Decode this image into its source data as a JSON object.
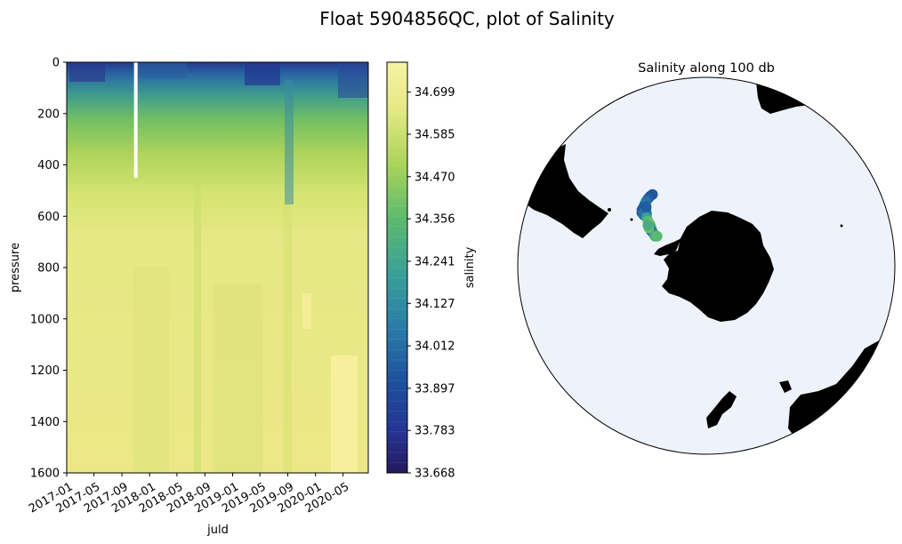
{
  "figure": {
    "title": "Float 5904856QC, plot of Salinity"
  },
  "chart_data": [
    {
      "type": "heatmap",
      "xlabel": "juld",
      "ylabel": "pressure",
      "x_ticks": [
        "2017-01",
        "2017-05",
        "2017-09",
        "2018-01",
        "2018-05",
        "2018-09",
        "2019-01",
        "2019-05",
        "2019-09",
        "2020-01",
        "2020-05"
      ],
      "xlim": [
        "2017-01-01",
        "2020-08-20"
      ],
      "ylim": [
        1600,
        0
      ],
      "y_ticks": [
        0,
        200,
        400,
        600,
        800,
        1000,
        1200,
        1400,
        1600
      ],
      "y_inverted": true,
      "colorbar": {
        "label": "salinity",
        "range": [
          33.668,
          34.78
        ],
        "ticks": [
          33.668,
          33.783,
          33.897,
          34.012,
          34.127,
          34.241,
          34.356,
          34.47,
          34.585,
          34.699
        ],
        "colormap": "YlGnBu_r"
      },
      "gap": {
        "date": "2017-11-01",
        "pressure_range": [
          0,
          450
        ]
      }
    },
    {
      "type": "scatter",
      "title": "Salinity along 100 db",
      "projection": "south-polar-stereographic",
      "ocean_color": "#eef3fb",
      "land_color": "#000000",
      "points": [
        {
          "lon": -37,
          "lat": -48,
          "s": 33.95
        },
        {
          "lon": -39,
          "lat": -48,
          "s": 33.93
        },
        {
          "lon": -41,
          "lat": -48.2,
          "s": 33.96
        },
        {
          "lon": -43,
          "lat": -48.5,
          "s": 34.02
        },
        {
          "lon": -45,
          "lat": -49,
          "s": 34.05
        },
        {
          "lon": -47,
          "lat": -49.5,
          "s": 33.98
        },
        {
          "lon": -49,
          "lat": -49.8,
          "s": 33.94
        },
        {
          "lon": -50.5,
          "lat": -50.5,
          "s": 33.97
        },
        {
          "lon": -50,
          "lat": -51.5,
          "s": 34.1
        },
        {
          "lon": -51,
          "lat": -52,
          "s": 34.0
        },
        {
          "lon": -49,
          "lat": -52.5,
          "s": 34.08
        },
        {
          "lon": -47,
          "lat": -51,
          "s": 34.02
        },
        {
          "lon": -45.5,
          "lat": -50.2,
          "s": 33.96
        },
        {
          "lon": -51,
          "lat": -53.5,
          "s": 34.2
        },
        {
          "lon": -52.5,
          "lat": -55,
          "s": 34.35
        },
        {
          "lon": -53.5,
          "lat": -56.5,
          "s": 34.4
        },
        {
          "lon": -55,
          "lat": -57.5,
          "s": 34.3
        },
        {
          "lon": -56,
          "lat": -58.2,
          "s": 34.25
        },
        {
          "lon": -57.5,
          "lat": -58.5,
          "s": 34.05
        },
        {
          "lon": -58,
          "lat": -59.5,
          "s": 33.98
        },
        {
          "lon": -59,
          "lat": -60.8,
          "s": 34.18
        },
        {
          "lon": -60,
          "lat": -61.5,
          "s": 34.28
        },
        {
          "lon": -59,
          "lat": -62.3,
          "s": 34.35
        },
        {
          "lon": -56.5,
          "lat": -57,
          "s": 34.38
        },
        {
          "lon": -55,
          "lat": -56,
          "s": 34.28
        }
      ]
    }
  ]
}
